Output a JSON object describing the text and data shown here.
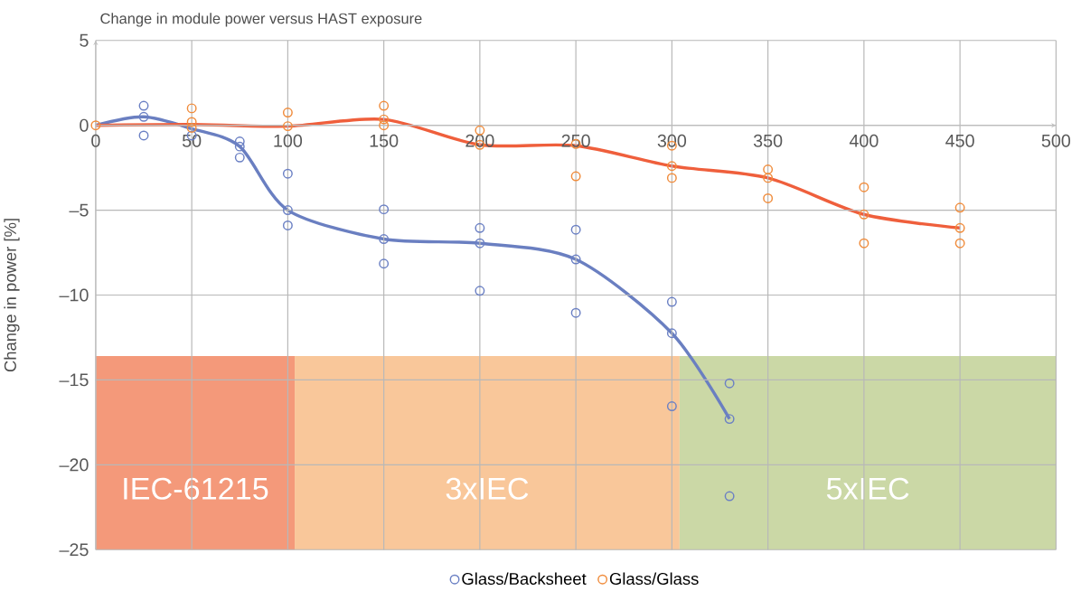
{
  "chart_data": {
    "type": "scatter",
    "title": "Change in module power versus HAST exposure",
    "ylabel": "Change in power [%]",
    "xlim": [
      0,
      500
    ],
    "ylim": [
      -25,
      5
    ],
    "xticks": [
      0,
      50,
      100,
      150,
      200,
      250,
      300,
      350,
      400,
      450,
      500
    ],
    "yticks": [
      {
        "value": -25,
        "label": "–25"
      },
      {
        "value": -20,
        "label": "–20"
      },
      {
        "value": -15,
        "label": "–15"
      },
      {
        "value": -10,
        "label": "–10"
      },
      {
        "value": -5,
        "label": "–5"
      },
      0,
      5
    ],
    "grid": true,
    "legend": "bottom",
    "marker": "circle",
    "bands": [
      {
        "axis": "x",
        "from": 0,
        "to": 103.6,
        "label": "IEC-61215",
        "color": "#f4997a"
      },
      {
        "axis": "x",
        "from": 103.6,
        "to": 304,
        "label": "3xIEC",
        "color": "#f9c79a"
      },
      {
        "axis": "x",
        "from": 304,
        "to": 500,
        "label": "5xIEC",
        "color": "#cbd8a6"
      }
    ],
    "series": [
      {
        "name": "Glass/Backsheet",
        "color": "#6b80c4",
        "x": [
          25,
          25,
          25,
          50,
          75,
          75,
          75,
          100,
          100,
          100,
          150,
          150,
          150,
          200,
          200,
          200,
          250,
          250,
          250,
          300,
          300,
          300,
          330,
          330,
          330
        ],
        "values": [
          1.15,
          0.5,
          -0.6,
          -0.6,
          -0.95,
          -1.25,
          -1.9,
          -2.85,
          -5,
          -5.9,
          -4.95,
          -6.7,
          -8.15,
          -6.05,
          -6.95,
          -9.75,
          -6.15,
          -7.9,
          -11.05,
          -10.4,
          -12.25,
          -16.55,
          -15.2,
          -17.3,
          -21.85
        ]
      },
      {
        "name": "Glass/Glass",
        "color": "#f08c3c",
        "x": [
          0,
          50,
          50,
          50,
          100,
          100,
          150,
          150,
          150,
          200,
          200,
          250,
          250,
          300,
          300,
          300,
          350,
          350,
          350,
          400,
          400,
          400,
          450,
          450,
          450
        ],
        "values": [
          0,
          1.0,
          0.2,
          -0.15,
          0.75,
          -0.05,
          1.15,
          0.35,
          0,
          -0.3,
          -1.15,
          -1.1,
          -3.0,
          -1.2,
          -2.4,
          -3.1,
          -2.6,
          -3.1,
          -4.3,
          -3.65,
          -5.25,
          -6.95,
          -4.85,
          -6.05,
          -6.95
        ]
      },
      {
        "type": "line",
        "marker": "none",
        "color": "#6a7fc1",
        "x": [
          0,
          25,
          50,
          75,
          100,
          150,
          200,
          250,
          300,
          330
        ],
        "values": [
          0,
          0.5,
          -0.2,
          -1.25,
          -5,
          -6.7,
          -6.95,
          -7.9,
          -12.25,
          -17.3
        ]
      },
      {
        "type": "line",
        "marker": "none",
        "color": "#ef5f3c",
        "x": [
          0,
          50,
          100,
          150,
          200,
          250,
          300,
          350,
          400,
          450
        ],
        "values": [
          0,
          0.05,
          -0.05,
          0.35,
          -1.15,
          -1.2,
          -2.4,
          -3.1,
          -5.25,
          -6.05
        ]
      }
    ]
  }
}
